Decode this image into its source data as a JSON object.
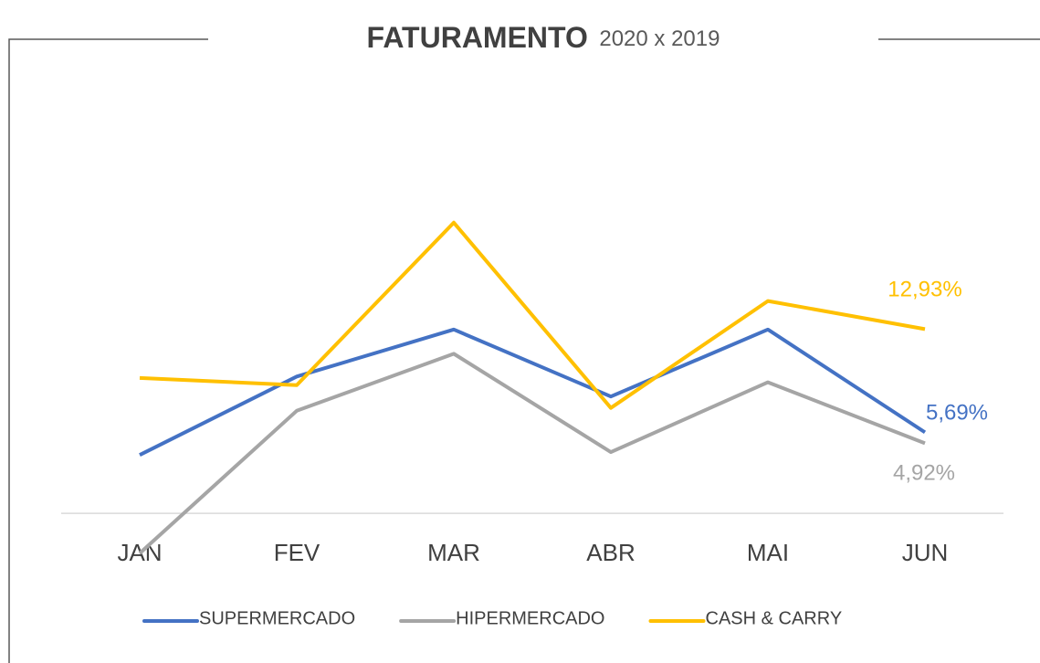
{
  "chart_data": {
    "type": "line",
    "title": "FATURAMENTO",
    "subtitle": "2020 x 2019",
    "categories": [
      "JAN",
      "FEV",
      "MAR",
      "ABR",
      "MAI",
      "JUN"
    ],
    "ylim": [
      -3,
      25
    ],
    "legend": "bottom",
    "series": [
      {
        "name": "SUPERMERCADO",
        "color": "#4472c4",
        "values": [
          4.1,
          9.6,
          12.9,
          8.2,
          12.9,
          5.69
        ],
        "value_labels": [
          null,
          null,
          null,
          null,
          null,
          "5,69%"
        ]
      },
      {
        "name": "HIPERMERCADO",
        "color": "#a5a5a5",
        "values": [
          -2.8,
          7.2,
          11.2,
          4.3,
          9.2,
          4.92
        ],
        "value_labels": [
          null,
          null,
          null,
          null,
          null,
          "4,92%"
        ]
      },
      {
        "name": "CASH & CARRY",
        "color": "#ffc000",
        "values": [
          9.5,
          9.0,
          20.4,
          7.4,
          14.9,
          12.93
        ],
        "value_labels": [
          null,
          null,
          null,
          null,
          null,
          "12,93%"
        ]
      }
    ]
  }
}
